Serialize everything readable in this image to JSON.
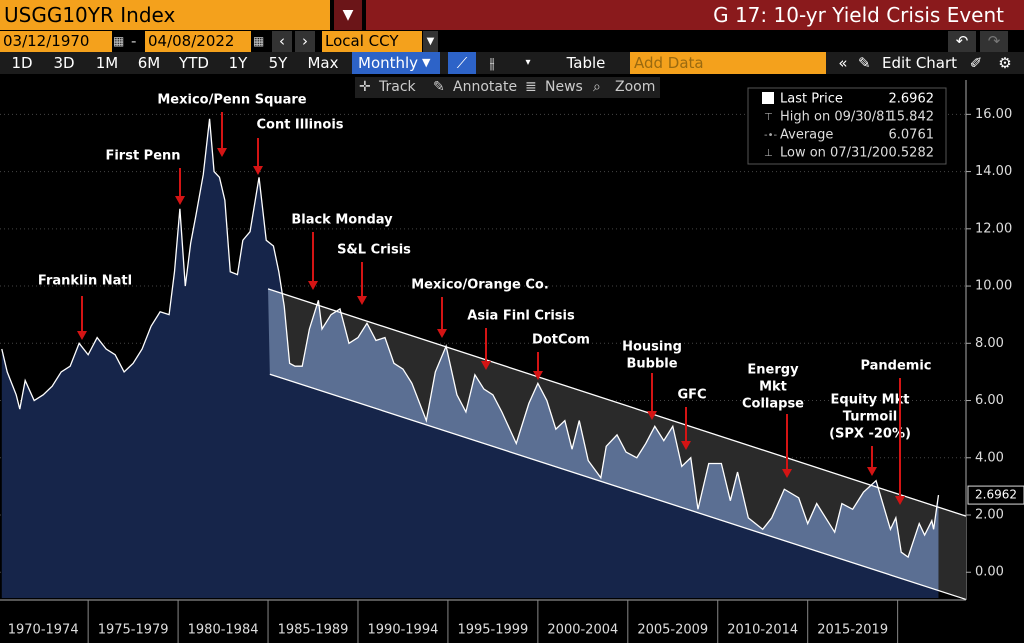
{
  "header": {
    "ticker": "USGG10YR Index",
    "title": "G 17: 10-yr Yield Crisis Event"
  },
  "controls": {
    "start_date": "03/12/1970",
    "end_date": "04/08/2022",
    "currency": "Local CCY",
    "periods": [
      "1D",
      "3D",
      "1M",
      "6M",
      "YTD",
      "1Y",
      "5Y",
      "Max"
    ],
    "frequency": "Monthly",
    "table": "Table",
    "add_data": "Add Data",
    "edit_chart": "Edit Chart",
    "tools": [
      "Track",
      "Annotate",
      "News",
      "Zoom"
    ]
  },
  "chart_data": {
    "type": "line",
    "x": [
      1970.2,
      1970.5,
      1971.0,
      1971.2,
      1971.5,
      1972.0,
      1972.5,
      1973.0,
      1973.5,
      1974.0,
      1974.5,
      1975.0,
      1975.5,
      1976.0,
      1976.5,
      1977.0,
      1977.5,
      1978.0,
      1978.5,
      1979.0,
      1979.5,
      1979.8,
      1980.1,
      1980.4,
      1980.7,
      1981.0,
      1981.4,
      1981.75,
      1982.0,
      1982.3,
      1982.6,
      1982.9,
      1983.3,
      1983.6,
      1984.0,
      1984.5,
      1984.9,
      1985.3,
      1985.6,
      1985.9,
      1986.2,
      1986.5,
      1986.9,
      1987.3,
      1987.8,
      1988.0,
      1988.5,
      1989.0,
      1989.5,
      1990.0,
      1990.5,
      1991.0,
      1991.5,
      1992.0,
      1992.5,
      1993.0,
      1993.8,
      1994.3,
      1994.9,
      1995.5,
      1996.0,
      1996.5,
      1997.0,
      1997.5,
      1998.0,
      1998.8,
      1999.5,
      2000.0,
      2000.5,
      2001.0,
      2001.5,
      2001.9,
      2002.3,
      2002.8,
      2003.5,
      2003.8,
      2004.4,
      2004.9,
      2005.5,
      2006.0,
      2006.5,
      2007.0,
      2007.5,
      2008.0,
      2008.5,
      2008.9,
      2009.5,
      2010.2,
      2010.7,
      2011.1,
      2011.7,
      2012.5,
      2013.0,
      2013.7,
      2014.5,
      2015.0,
      2015.5,
      2016.5,
      2016.9,
      2017.5,
      2018.1,
      2018.8,
      2019.6,
      2019.9,
      2020.2,
      2020.58,
      2021.2,
      2021.5,
      2021.9,
      2022.0,
      2022.27
    ],
    "series": [
      {
        "name": "Last Price",
        "color": "#ffffff",
        "values": [
          7.8,
          7.0,
          6.2,
          5.7,
          6.7,
          6.0,
          6.2,
          6.5,
          7.0,
          7.2,
          8.0,
          7.6,
          8.2,
          7.8,
          7.6,
          7.0,
          7.3,
          7.8,
          8.6,
          9.1,
          9.0,
          10.5,
          12.7,
          10.0,
          11.5,
          12.5,
          13.9,
          15.842,
          14.0,
          13.8,
          13.0,
          10.5,
          10.4,
          11.6,
          11.9,
          13.8,
          11.6,
          11.4,
          10.5,
          9.3,
          7.3,
          7.2,
          7.2,
          8.5,
          9.5,
          8.5,
          9.0,
          9.2,
          8.0,
          8.2,
          8.7,
          8.1,
          8.2,
          7.3,
          7.1,
          6.6,
          5.3,
          7.0,
          7.9,
          6.2,
          5.6,
          6.9,
          6.4,
          6.2,
          5.6,
          4.5,
          5.9,
          6.6,
          6.0,
          5.0,
          5.3,
          4.3,
          5.3,
          3.9,
          3.3,
          4.4,
          4.8,
          4.2,
          4.0,
          4.5,
          5.1,
          4.6,
          5.1,
          3.7,
          4.0,
          2.2,
          3.8,
          3.8,
          2.5,
          3.5,
          1.9,
          1.5,
          1.9,
          2.9,
          2.6,
          1.7,
          2.4,
          1.4,
          2.4,
          2.2,
          2.8,
          3.2,
          1.5,
          1.9,
          0.7,
          0.5282,
          1.7,
          1.3,
          1.8,
          1.5,
          2.6962
        ]
      }
    ],
    "stats": [
      {
        "label": "High on 09/30/81",
        "value": 15.842
      },
      {
        "label": "Average",
        "value": 6.0761
      },
      {
        "label": "Low on 07/31/20",
        "value": 0.5282
      }
    ],
    "channel": [
      {
        "x": [
          1985.0,
          2023.8
        ],
        "values": [
          9.9,
          1.96
        ]
      },
      {
        "x": [
          1985.1,
          2023.8
        ],
        "values": [
          6.92,
          -0.95
        ]
      }
    ],
    "xlim": [
      1970.1,
      2023.8
    ],
    "xticks": [
      {
        "value": 1972.5,
        "label": "1970-1974"
      },
      {
        "value": 1977.5,
        "label": "1975-1979"
      },
      {
        "value": 1982.5,
        "label": "1980-1984"
      },
      {
        "value": 1987.5,
        "label": "1985-1989"
      },
      {
        "value": 1992.5,
        "label": "1990-1994"
      },
      {
        "value": 1997.5,
        "label": "1995-1999"
      },
      {
        "value": 2002.5,
        "label": "2000-2004"
      },
      {
        "value": 2007.5,
        "label": "2005-2009"
      },
      {
        "value": 2012.5,
        "label": "2010-2014"
      },
      {
        "value": 2017.5,
        "label": "2015-2019"
      }
    ],
    "ylim": [
      -0.9,
      17.2
    ],
    "yticks": [
      {
        "value": 0,
        "label": "0.00"
      },
      {
        "value": 2,
        "label": "2.00"
      },
      {
        "value": 4,
        "label": "4.00"
      },
      {
        "value": 6,
        "label": "6.00"
      },
      {
        "value": 8,
        "label": "8.00"
      },
      {
        "value": 10,
        "label": "10.00"
      },
      {
        "value": 12,
        "label": "12.00"
      },
      {
        "value": 14,
        "label": "14.00"
      },
      {
        "value": 16,
        "label": "16.00"
      }
    ],
    "grid": true,
    "annotations": [
      {
        "lines": [
          "Franklin Natl"
        ]
      },
      {
        "lines": [
          "First Penn"
        ]
      },
      {
        "lines": [
          "Mexico/Penn Square"
        ]
      },
      {
        "lines": [
          "Cont Illinois"
        ]
      },
      {
        "lines": [
          "Black Monday"
        ]
      },
      {
        "lines": [
          "S&L Crisis"
        ]
      },
      {
        "lines": [
          "Mexico/Orange Co."
        ]
      },
      {
        "lines": [
          "Asia Finl Crisis"
        ]
      },
      {
        "lines": [
          "DotCom"
        ]
      },
      {
        "lines": [
          "Housing",
          "Bubble"
        ]
      },
      {
        "lines": [
          "GFC"
        ]
      },
      {
        "lines": [
          "Energy",
          "Mkt",
          "Collapse"
        ]
      },
      {
        "lines": [
          "Equity Mkt",
          "Turmoil",
          "(SPX -20%)"
        ]
      },
      {
        "lines": [
          "Pandemic"
        ]
      }
    ]
  }
}
